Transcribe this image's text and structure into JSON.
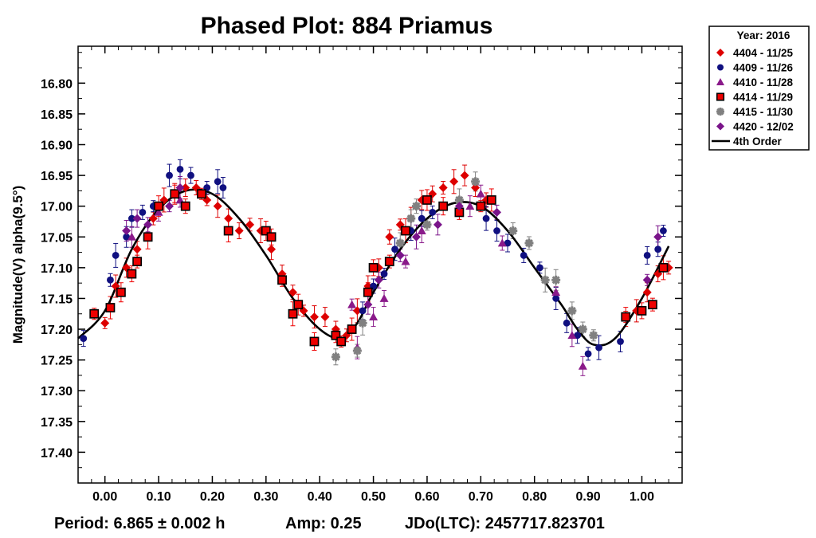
{
  "chart_data": {
    "type": "scatter",
    "title": "Phased Plot: 884 Priamus",
    "ylabel": "Magnitude(V) alpha(9.5°)",
    "xlabel": "",
    "xlim": [
      -0.05,
      1.075
    ],
    "ylim": [
      17.45,
      16.74
    ],
    "y_inverted": true,
    "x_ticks": [
      "0.00",
      "0.10",
      "0.20",
      "0.30",
      "0.40",
      "0.50",
      "0.60",
      "0.70",
      "0.80",
      "0.90",
      "1.00"
    ],
    "y_ticks": [
      "16.80",
      "16.85",
      "16.90",
      "16.95",
      "17.00",
      "17.05",
      "17.10",
      "17.15",
      "17.20",
      "17.25",
      "17.30",
      "17.35",
      "17.40"
    ],
    "legend": {
      "title": "Year: 2016",
      "position": "right"
    },
    "fit": {
      "name": "4th Order",
      "color": "#000000",
      "points": [
        [
          -0.05,
          17.215
        ],
        [
          0.0,
          17.17
        ],
        [
          0.05,
          17.07
        ],
        [
          0.1,
          17.005
        ],
        [
          0.15,
          16.975
        ],
        [
          0.2,
          16.98
        ],
        [
          0.25,
          17.02
        ],
        [
          0.3,
          17.08
        ],
        [
          0.35,
          17.15
        ],
        [
          0.4,
          17.2
        ],
        [
          0.44,
          17.215
        ],
        [
          0.47,
          17.19
        ],
        [
          0.5,
          17.14
        ],
        [
          0.55,
          17.07
        ],
        [
          0.6,
          17.02
        ],
        [
          0.65,
          16.995
        ],
        [
          0.7,
          17.0
        ],
        [
          0.75,
          17.04
        ],
        [
          0.8,
          17.1
        ],
        [
          0.85,
          17.16
        ],
        [
          0.88,
          17.2
        ],
        [
          0.91,
          17.225
        ],
        [
          0.95,
          17.215
        ],
        [
          1.0,
          17.15
        ],
        [
          1.05,
          17.065
        ]
      ]
    },
    "series": [
      {
        "name": "4404 - 11/25",
        "marker": "diamond",
        "color": "#dd0000",
        "points": [
          [
            0.0,
            17.19
          ],
          [
            0.02,
            17.13
          ],
          [
            0.04,
            17.1
          ],
          [
            0.06,
            17.07
          ],
          [
            0.09,
            17.02
          ],
          [
            0.11,
            16.99
          ],
          [
            0.13,
            16.98
          ],
          [
            0.15,
            16.97
          ],
          [
            0.17,
            16.97
          ],
          [
            0.19,
            16.99
          ],
          [
            0.21,
            17.0
          ],
          [
            0.23,
            17.02
          ],
          [
            0.25,
            17.04
          ],
          [
            0.27,
            17.03
          ],
          [
            0.29,
            17.04
          ],
          [
            0.31,
            17.07
          ],
          [
            0.33,
            17.11
          ],
          [
            0.35,
            17.14
          ],
          [
            0.37,
            17.17
          ],
          [
            0.39,
            17.18
          ],
          [
            0.41,
            17.18
          ],
          [
            0.43,
            17.2
          ],
          [
            0.45,
            17.21
          ],
          [
            0.47,
            17.17
          ],
          [
            0.49,
            17.13
          ],
          [
            0.51,
            17.1
          ],
          [
            0.53,
            17.05
          ],
          [
            0.55,
            17.03
          ],
          [
            0.57,
            17.02
          ],
          [
            0.59,
            16.99
          ],
          [
            0.61,
            16.98
          ],
          [
            0.63,
            16.97
          ],
          [
            0.65,
            16.96
          ],
          [
            0.67,
            16.95
          ],
          [
            0.69,
            16.97
          ],
          [
            0.71,
            16.99
          ],
          [
            0.97,
            17.18
          ],
          [
            0.99,
            17.17
          ],
          [
            1.01,
            17.14
          ],
          [
            1.03,
            17.11
          ],
          [
            1.05,
            17.1
          ]
        ]
      },
      {
        "name": "4409 - 11/26",
        "marker": "circle",
        "color": "#101080",
        "points": [
          [
            -0.04,
            17.215
          ],
          [
            0.01,
            17.12
          ],
          [
            0.02,
            17.08
          ],
          [
            0.04,
            17.05
          ],
          [
            0.05,
            17.02
          ],
          [
            0.07,
            17.01
          ],
          [
            0.09,
            17.0
          ],
          [
            0.12,
            16.95
          ],
          [
            0.14,
            16.94
          ],
          [
            0.16,
            16.95
          ],
          [
            0.19,
            16.97
          ],
          [
            0.21,
            16.96
          ],
          [
            0.22,
            16.97
          ],
          [
            0.48,
            17.17
          ],
          [
            0.5,
            17.13
          ],
          [
            0.52,
            17.11
          ],
          [
            0.54,
            17.07
          ],
          [
            0.57,
            17.04
          ],
          [
            0.59,
            17.02
          ],
          [
            0.61,
            17.01
          ],
          [
            0.71,
            17.02
          ],
          [
            0.73,
            17.04
          ],
          [
            0.75,
            17.06
          ],
          [
            0.78,
            17.08
          ],
          [
            0.81,
            17.1
          ],
          [
            0.84,
            17.15
          ],
          [
            0.86,
            17.19
          ],
          [
            0.88,
            17.21
          ],
          [
            0.9,
            17.24
          ],
          [
            0.92,
            17.23
          ],
          [
            0.96,
            17.22
          ],
          [
            1.01,
            17.08
          ],
          [
            1.03,
            17.07
          ],
          [
            1.04,
            17.04
          ]
        ]
      },
      {
        "name": "4410 - 11/28",
        "marker": "triangle",
        "color": "#8a1a8a",
        "points": [
          [
            0.05,
            17.05
          ],
          [
            0.1,
            17.01
          ],
          [
            0.14,
            16.99
          ],
          [
            0.46,
            17.16
          ],
          [
            0.47,
            17.23
          ],
          [
            0.5,
            17.18
          ],
          [
            0.52,
            17.15
          ],
          [
            0.56,
            17.09
          ],
          [
            0.59,
            17.04
          ],
          [
            0.68,
            17.0
          ],
          [
            0.7,
            16.98
          ],
          [
            0.74,
            17.06
          ],
          [
            0.84,
            17.14
          ],
          [
            0.87,
            17.21
          ],
          [
            0.89,
            17.26
          ]
        ]
      },
      {
        "name": "4414 - 11/29",
        "marker": "square",
        "color": "#ee0000",
        "points": [
          [
            -0.02,
            17.175
          ],
          [
            0.01,
            17.165
          ],
          [
            0.03,
            17.14
          ],
          [
            0.05,
            17.11
          ],
          [
            0.06,
            17.09
          ],
          [
            0.08,
            17.05
          ],
          [
            0.1,
            17.0
          ],
          [
            0.13,
            16.98
          ],
          [
            0.15,
            17.0
          ],
          [
            0.18,
            16.98
          ],
          [
            0.23,
            17.04
          ],
          [
            0.3,
            17.04
          ],
          [
            0.31,
            17.05
          ],
          [
            0.33,
            17.12
          ],
          [
            0.35,
            17.175
          ],
          [
            0.36,
            17.16
          ],
          [
            0.39,
            17.22
          ],
          [
            0.43,
            17.21
          ],
          [
            0.44,
            17.22
          ],
          [
            0.46,
            17.2
          ],
          [
            0.49,
            17.14
          ],
          [
            0.5,
            17.1
          ],
          [
            0.53,
            17.09
          ],
          [
            0.56,
            17.04
          ],
          [
            0.6,
            16.99
          ],
          [
            0.63,
            17.0
          ],
          [
            0.66,
            17.01
          ],
          [
            0.7,
            17.0
          ],
          [
            0.72,
            16.99
          ],
          [
            0.97,
            17.18
          ],
          [
            1.0,
            17.17
          ],
          [
            1.02,
            17.16
          ],
          [
            1.04,
            17.1
          ]
        ]
      },
      {
        "name": "4415 - 11/30",
        "marker": "star",
        "color": "#808080",
        "points": [
          [
            0.43,
            17.245
          ],
          [
            0.47,
            17.235
          ],
          [
            0.48,
            17.19
          ],
          [
            0.55,
            17.06
          ],
          [
            0.57,
            17.02
          ],
          [
            0.58,
            17.0
          ],
          [
            0.6,
            17.03
          ],
          [
            0.66,
            16.99
          ],
          [
            0.69,
            16.96
          ],
          [
            0.76,
            17.04
          ],
          [
            0.79,
            17.06
          ],
          [
            0.82,
            17.12
          ],
          [
            0.84,
            17.12
          ],
          [
            0.87,
            17.17
          ],
          [
            0.89,
            17.2
          ],
          [
            0.91,
            17.21
          ]
        ]
      },
      {
        "name": "4420 - 12/02",
        "marker": "diamond",
        "color": "#7a148a",
        "points": [
          [
            0.04,
            17.04
          ],
          [
            0.06,
            17.02
          ],
          [
            0.08,
            17.03
          ],
          [
            0.12,
            17.0
          ],
          [
            0.14,
            16.97
          ],
          [
            0.49,
            17.16
          ],
          [
            0.51,
            17.12
          ],
          [
            0.55,
            17.08
          ],
          [
            0.58,
            17.05
          ],
          [
            0.62,
            17.03
          ],
          [
            0.66,
            17.0
          ],
          [
            0.73,
            17.01
          ],
          [
            1.01,
            17.12
          ],
          [
            1.03,
            17.05
          ]
        ]
      }
    ]
  },
  "footer": {
    "period": "Period: 6.865 ± 0.002 h",
    "amp": "Amp: 0.25",
    "jdo": "JDo(LTC): 2457717.823701"
  }
}
